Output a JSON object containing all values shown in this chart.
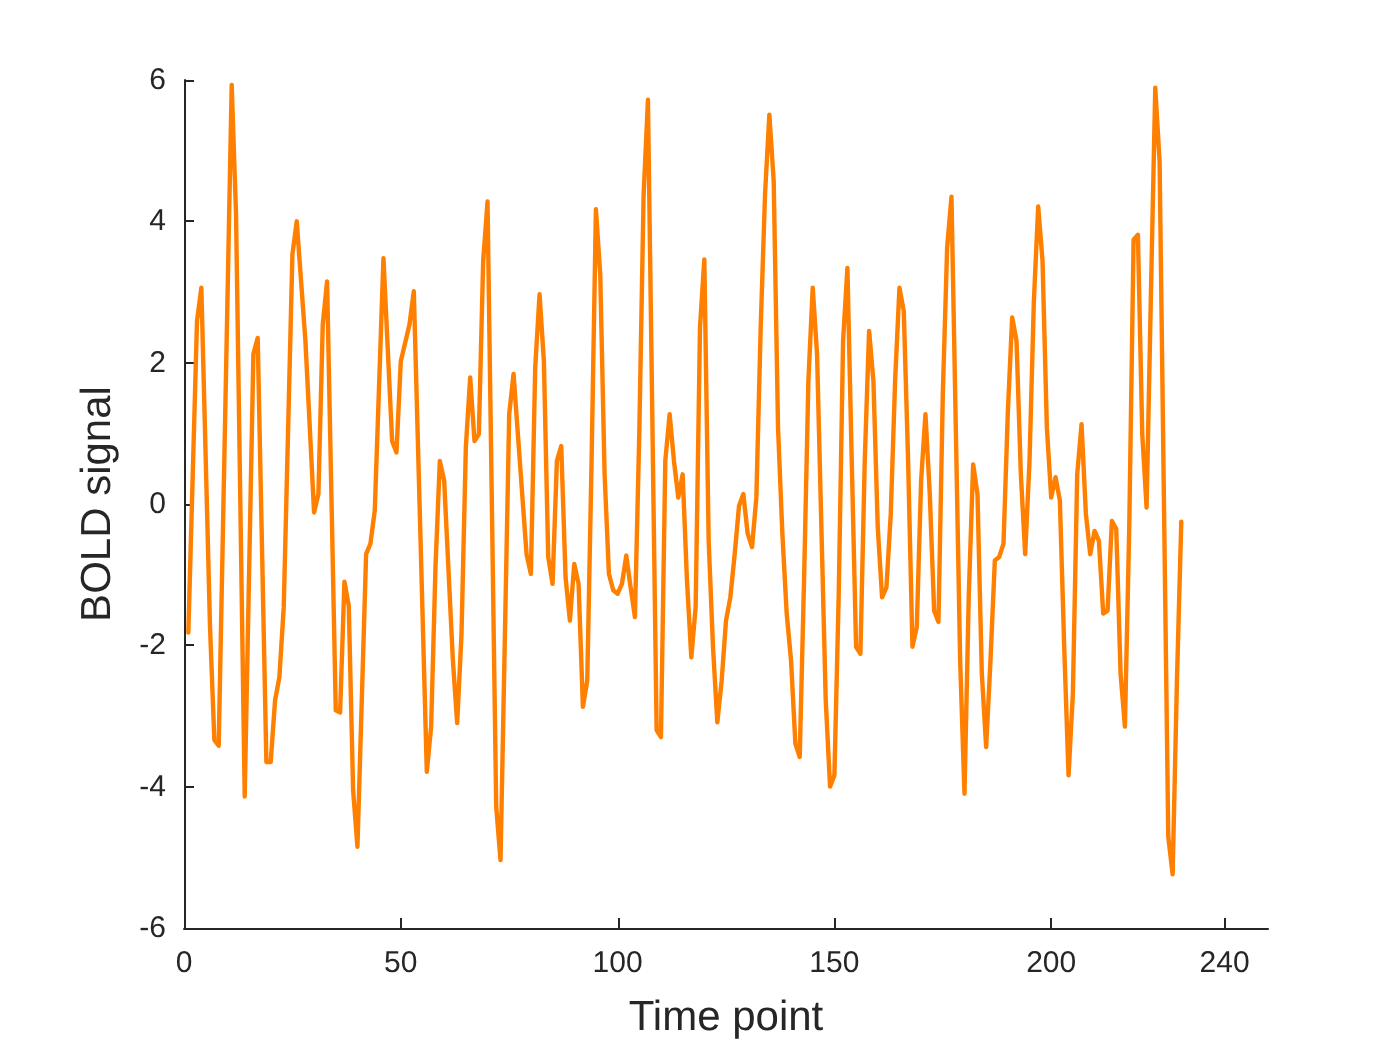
{
  "chart_data": {
    "type": "line",
    "xlabel": "Time point",
    "ylabel": "BOLD signal",
    "color": "#ff7f00",
    "marker": "none",
    "line_style": "solid",
    "xlim": [
      0,
      250
    ],
    "xticks": [
      0,
      50,
      100,
      150,
      200,
      240
    ],
    "ylim": [
      -6,
      6
    ],
    "yticks": [
      -6,
      -4,
      -2,
      0,
      2,
      4,
      6
    ],
    "x": [
      1,
      3,
      4,
      6,
      7,
      8,
      11,
      12,
      14,
      16,
      17,
      19,
      20,
      21,
      22,
      23,
      25,
      26,
      28,
      30,
      31,
      32,
      33,
      35,
      36,
      37,
      38,
      39,
      40,
      42,
      43,
      44,
      46,
      48,
      49,
      50,
      52,
      53,
      56,
      57,
      58,
      59,
      60,
      62,
      63,
      64,
      65,
      66,
      67,
      68,
      69,
      70,
      72,
      73,
      75,
      76,
      77,
      79,
      80,
      81,
      82,
      83,
      84,
      85,
      86,
      87,
      88,
      89,
      90,
      91,
      92,
      93,
      94,
      95,
      96,
      97,
      98,
      99,
      100,
      101,
      102,
      103,
      104,
      105,
      106,
      107,
      109,
      110,
      111,
      112,
      113,
      114,
      115,
      116,
      117,
      118,
      119,
      120,
      121,
      122,
      123,
      124,
      125,
      126,
      127,
      128,
      129,
      130,
      131,
      132,
      133,
      134,
      135,
      136,
      137,
      138,
      139,
      140,
      141,
      142,
      143,
      144,
      145,
      146,
      147,
      148,
      149,
      150,
      151,
      152,
      153,
      154,
      155,
      156,
      157,
      158,
      159,
      160,
      161,
      162,
      163,
      164,
      165,
      166,
      167,
      168,
      169,
      170,
      171,
      172,
      173,
      174,
      175,
      176,
      177,
      178,
      179,
      180,
      181,
      182,
      183,
      184,
      185,
      186,
      187,
      188,
      189,
      190,
      191,
      192,
      193,
      194,
      195,
      196,
      197,
      198,
      199,
      200,
      201,
      202,
      203,
      204,
      205,
      206,
      207,
      208,
      209,
      210,
      211,
      212,
      213,
      214,
      215,
      216,
      217,
      218,
      219,
      220,
      221,
      222,
      223,
      224,
      225,
      226,
      227,
      228,
      229,
      230
    ],
    "values": [
      -1.82,
      2.59,
      3.06,
      -1.74,
      -3.34,
      -3.42,
      5.93,
      4.1,
      -4.14,
      2.12,
      2.35,
      -3.65,
      -3.65,
      -2.78,
      -2.45,
      -1.46,
      3.53,
      4.0,
      2.31,
      -0.12,
      0.14,
      2.54,
      3.15,
      -2.92,
      -2.95,
      -1.1,
      -1.44,
      -4.05,
      -4.85,
      -0.71,
      -0.56,
      -0.09,
      3.48,
      0.89,
      0.73,
      2.02,
      2.54,
      3.01,
      -3.79,
      -3.15,
      -0.89,
      0.61,
      0.33,
      -2.2,
      -3.1,
      -1.84,
      0.8,
      1.79,
      0.89,
      0.99,
      3.44,
      4.28,
      -4.28,
      -5.04,
      1.27,
      1.84,
      0.99,
      -0.71,
      -0.99,
      1.93,
      2.97,
      2.02,
      -0.75,
      -1.13,
      0.61,
      0.82,
      -1.04,
      -1.65,
      -0.85,
      -1.13,
      -2.87,
      -2.5,
      0.61,
      4.17,
      3.25,
      0.42,
      -0.99,
      -1.22,
      -1.27,
      -1.13,
      -0.73,
      -1.18,
      -1.6,
      0.99,
      4.38,
      5.72,
      -3.2,
      -3.3,
      0.61,
      1.27,
      0.61,
      0.09,
      0.42,
      -1.08,
      -2.17,
      -1.46,
      2.5,
      3.46,
      -0.52,
      -2.02,
      -3.09,
      -2.5,
      -1.65,
      -1.32,
      -0.71,
      -0.03,
      0.14,
      -0.42,
      -0.61,
      0.09,
      2.5,
      4.38,
      5.51,
      4.57,
      1.08,
      -0.42,
      -1.55,
      -2.21,
      -3.39,
      -3.58,
      -1.08,
      1.74,
      3.06,
      2.12,
      -0.33,
      -2.78,
      -4.0,
      -3.84,
      -1.27,
      2.31,
      3.34,
      0.61,
      -2.02,
      -2.12,
      0.61,
      2.45,
      1.74,
      -0.33,
      -1.32,
      -1.18,
      -0.14,
      1.74,
      3.06,
      2.73,
      0.61,
      -2.02,
      -1.74,
      0.33,
      1.27,
      0.14,
      -1.51,
      -1.67,
      1.55,
      3.63,
      4.35,
      1.08,
      -2.21,
      -4.1,
      -1.27,
      0.56,
      0.14,
      -2.4,
      -3.44,
      -2.21,
      -0.8,
      -0.75,
      -0.56,
      1.3,
      2.64,
      2.31,
      0.42,
      -0.71,
      0.61,
      2.87,
      4.21,
      3.44,
      1.08,
      0.09,
      0.38,
      0.05,
      -2.02,
      -3.84,
      -2.68,
      0.42,
      1.13,
      -0.14,
      -0.71,
      -0.38,
      -0.52,
      -1.55,
      -1.51,
      -0.24,
      -0.35,
      -2.4,
      -3.15,
      -0.33,
      3.74,
      3.81,
      0.99,
      -0.05,
      2.97,
      5.89,
      4.85,
      0.05,
      -4.71,
      -5.24,
      -2.5,
      -0.25
    ]
  }
}
